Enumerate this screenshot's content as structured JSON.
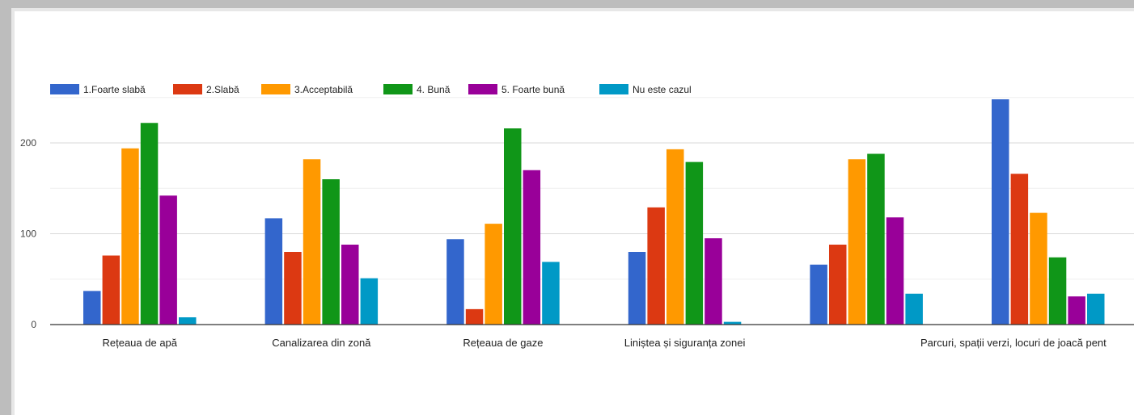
{
  "chart_data": {
    "type": "bar",
    "categories": [
      "Rețeaua de apă",
      "Canalizarea din zonă",
      "Rețeaua de gaze",
      "Liniștea și siguranța zonei",
      "",
      "Parcuri, spații verzi, locuri de joacă pent"
    ],
    "series": [
      {
        "name": "1.Foarte slabă",
        "color": "#3366cc",
        "values": [
          37,
          117,
          94,
          80,
          66,
          248
        ]
      },
      {
        "name": "2.Slabă",
        "color": "#dc3912",
        "values": [
          76,
          80,
          17,
          129,
          88,
          166
        ]
      },
      {
        "name": "3.Acceptabilă",
        "color": "#ff9900",
        "values": [
          194,
          182,
          111,
          193,
          182,
          123
        ]
      },
      {
        "name": "4. Bună",
        "color": "#109618",
        "values": [
          222,
          160,
          216,
          179,
          188,
          74
        ]
      },
      {
        "name": "5. Foarte bună",
        "color": "#990099",
        "values": [
          142,
          88,
          170,
          95,
          118,
          31
        ]
      },
      {
        "name": "Nu este cazul",
        "color": "#0099c6",
        "values": [
          8,
          51,
          69,
          3,
          34,
          34
        ]
      }
    ],
    "yticks": [
      0,
      100,
      200
    ],
    "ylim": [
      0,
      250
    ],
    "grid": true,
    "legend_position": "top-left"
  }
}
